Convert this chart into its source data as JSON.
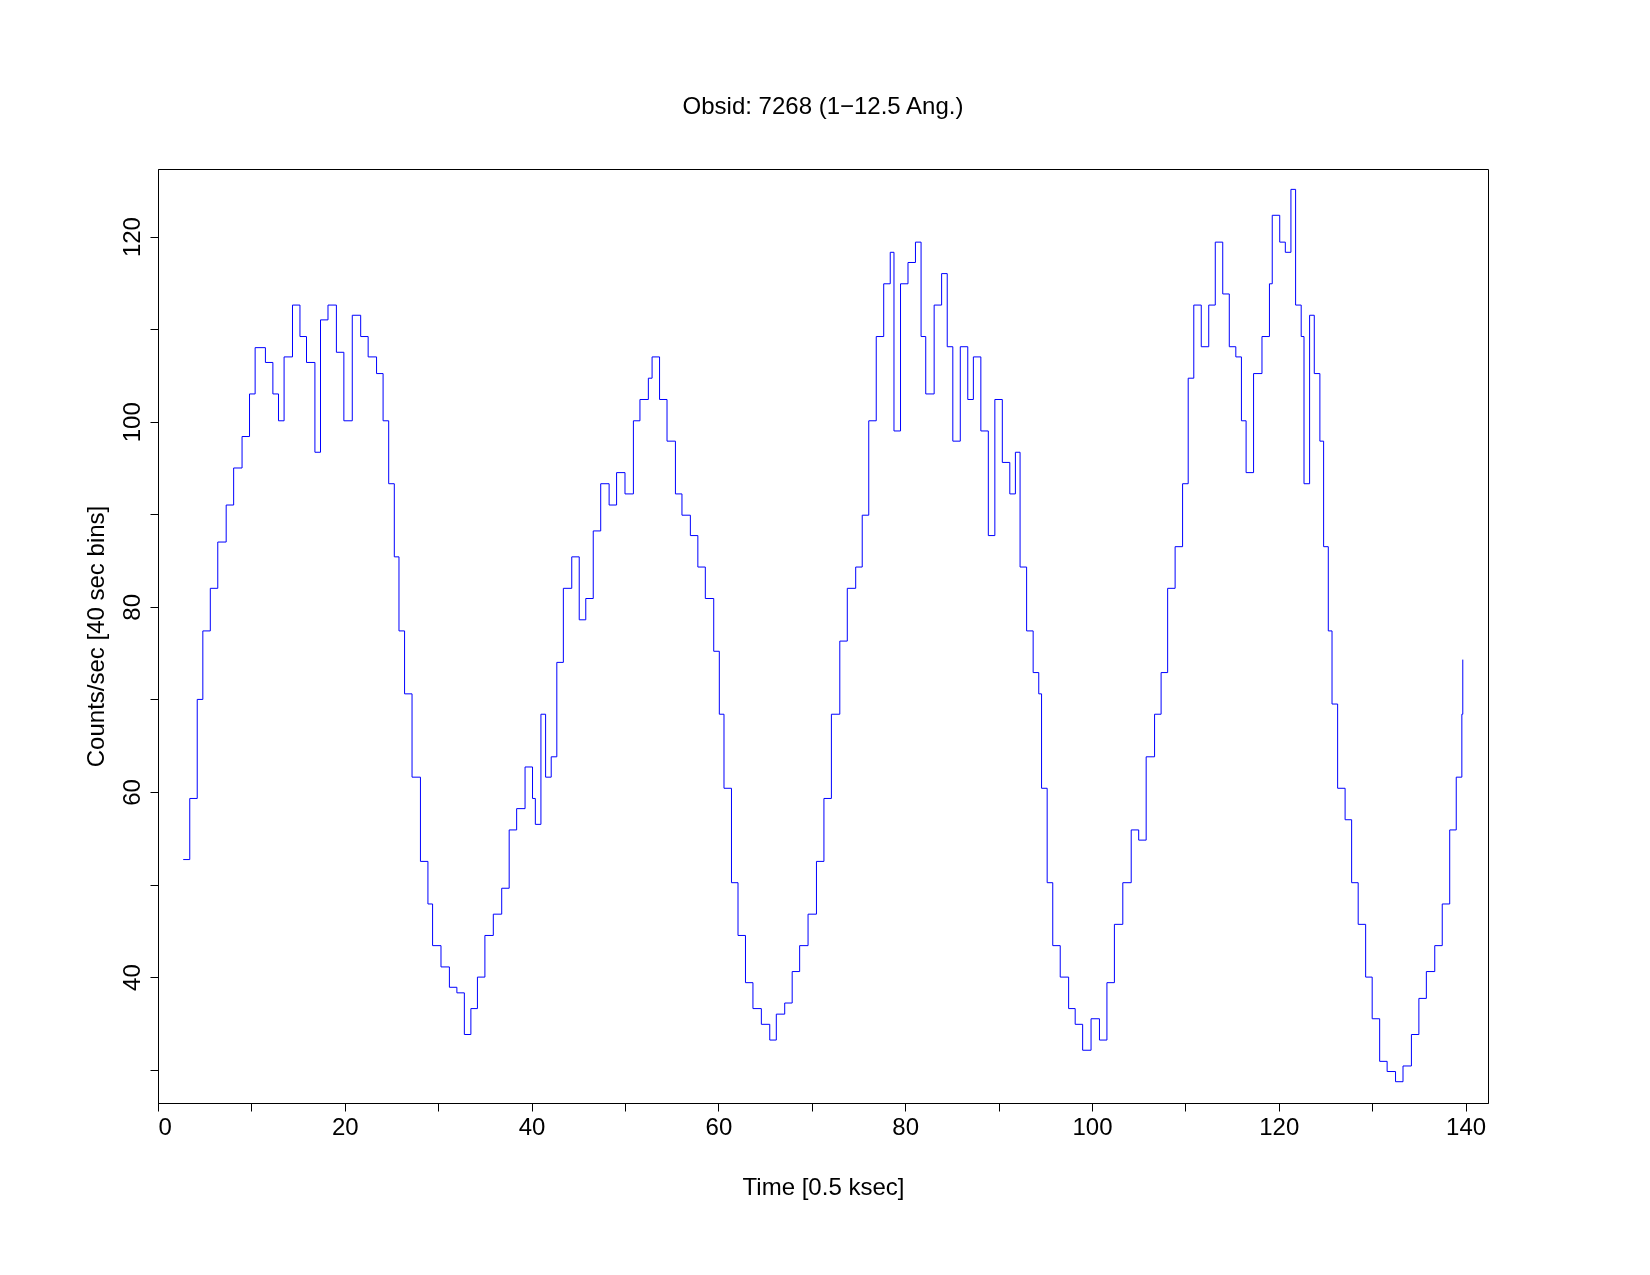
{
  "chart_data": {
    "type": "step",
    "title": "Obsid: 7268 (1−12.5 Ang.)",
    "xlabel": "Time [0.5 ksec]",
    "ylabel": "Counts/sec [40 sec bins]",
    "xlim": [
      0,
      142.4
    ],
    "ylim": [
      26.4,
      127.3
    ],
    "xticks": [
      0,
      {
        "value": 10,
        "label": null
      },
      20,
      {
        "value": 30,
        "label": null
      },
      40,
      {
        "value": 50,
        "label": null
      },
      60,
      {
        "value": 70,
        "label": null
      },
      80,
      {
        "value": 90,
        "label": null
      },
      100,
      {
        "value": 110,
        "label": null
      },
      120,
      {
        "value": 130,
        "label": null
      },
      140
    ],
    "yticks": [
      {
        "value": 30,
        "label": null
      },
      40,
      {
        "value": 50,
        "label": null
      },
      60,
      {
        "value": 70,
        "label": null
      },
      80,
      {
        "value": 90,
        "label": null
      },
      100,
      {
        "value": 110,
        "label": null
      },
      120
    ],
    "grid": false,
    "series": [
      {
        "color": "#0000ff",
        "x": [
          2.7,
          3.4,
          4.2,
          4.8,
          5.6,
          6.4,
          7.3,
          8.1,
          9.0,
          9.8,
          10.4,
          11.5,
          12.3,
          12.9,
          13.5,
          14.4,
          15.2,
          15.9,
          16.8,
          17.4,
          18.2,
          19.1,
          19.9,
          20.8,
          21.7,
          22.5,
          23.4,
          24.1,
          24.7,
          25.3,
          25.8,
          26.4,
          27.2,
          28.1,
          28.9,
          29.4,
          30.3,
          31.2,
          32.0,
          32.8,
          33.5,
          34.2,
          35.0,
          35.9,
          36.8,
          37.6,
          38.4,
          39.3,
          40.1,
          40.4,
          41.0,
          41.5,
          42.1,
          42.7,
          43.4,
          44.3,
          45.1,
          45.8,
          46.6,
          47.4,
          48.3,
          49.1,
          50.0,
          50.9,
          51.6,
          52.5,
          52.9,
          53.7,
          54.5,
          55.4,
          56.1,
          57.0,
          57.8,
          58.6,
          59.5,
          60.1,
          60.6,
          61.4,
          62.1,
          62.9,
          63.7,
          64.6,
          65.5,
          66.2,
          67.1,
          67.9,
          68.7,
          69.6,
          70.5,
          71.3,
          72.1,
          73.0,
          73.8,
          74.7,
          75.4,
          76.1,
          76.9,
          77.7,
          78.4,
          78.8,
          79.5,
          80.3,
          81.1,
          81.7,
          82.2,
          83.1,
          83.9,
          84.5,
          85.1,
          85.9,
          86.7,
          87.3,
          88.1,
          88.9,
          89.6,
          90.4,
          91.2,
          91.8,
          92.3,
          93.0,
          93.7,
          94.3,
          94.6,
          95.2,
          95.8,
          96.6,
          97.5,
          98.2,
          99.0,
          99.9,
          100.8,
          101.6,
          102.4,
          103.3,
          104.2,
          105.0,
          105.8,
          106.7,
          107.4,
          108.1,
          108.9,
          109.7,
          110.3,
          110.9,
          111.7,
          112.5,
          113.2,
          114.0,
          114.7,
          115.4,
          116.0,
          116.5,
          117.3,
          118.2,
          119.0,
          119.3,
          120.1,
          120.7,
          121.3,
          121.8,
          122.4,
          122.7,
          123.3,
          123.8,
          124.4,
          124.8,
          125.3,
          125.7,
          126.3,
          127.1,
          127.8,
          128.5,
          129.3,
          130.0,
          130.8,
          131.6,
          132.5,
          133.3,
          134.2,
          135.0,
          135.8,
          136.7,
          137.5,
          138.3,
          139.0,
          139.6,
          139.7
        ],
        "values": [
          52.7,
          59.3,
          70,
          77.4,
          82,
          87,
          91,
          95,
          98.4,
          103,
          108,
          106.4,
          103,
          100.1,
          107,
          112.6,
          109.2,
          106.4,
          96.7,
          111,
          112.6,
          107.5,
          100.1,
          111.5,
          109.2,
          107,
          105.2,
          100.1,
          93.3,
          85.4,
          77.4,
          70.6,
          61.6,
          52.5,
          47.9,
          43.4,
          41.1,
          38.9,
          38.3,
          33.8,
          36.6,
          40,
          44.5,
          46.8,
          49.6,
          55.9,
          58.2,
          62.7,
          59.3,
          56.5,
          68.4,
          61.6,
          63.8,
          74,
          82,
          85.4,
          78.6,
          80.9,
          88.2,
          93.3,
          91,
          94.5,
          92.2,
          100.1,
          102.4,
          104.7,
          107,
          102.4,
          97.9,
          92.2,
          89.9,
          87.7,
          84.3,
          80.9,
          75.2,
          68.4,
          60.4,
          50.2,
          44.5,
          39.4,
          36.6,
          34.9,
          33.2,
          36,
          37.2,
          40.6,
          43.4,
          46.8,
          52.5,
          59.3,
          68.4,
          76.3,
          82,
          84.3,
          89.9,
          100.1,
          109.2,
          114.9,
          118.3,
          99,
          114.9,
          117.2,
          119.4,
          109.2,
          103,
          112.6,
          116,
          108.1,
          97.9,
          108.1,
          102.4,
          107,
          99,
          87.7,
          102.4,
          95.6,
          92.2,
          96.7,
          84.3,
          77.4,
          72.9,
          70.6,
          60.4,
          50.2,
          43.4,
          40,
          36.6,
          34.9,
          32.1,
          35.5,
          33.2,
          39.4,
          45.7,
          50.2,
          55.9,
          54.8,
          63.8,
          68.4,
          72.9,
          82,
          86.5,
          93.3,
          104.7,
          112.6,
          108.1,
          112.6,
          119.4,
          113.8,
          108.1,
          107,
          100.1,
          94.5,
          105.2,
          109.2,
          114.9,
          122.3,
          119.4,
          118.3,
          125.1,
          112.6,
          109.2,
          93.3,
          111.5,
          105.2,
          97.9,
          86.5,
          77.4,
          69.5,
          60.4,
          57,
          50.2,
          45.7,
          40,
          35.5,
          30.9,
          29.8,
          28.7,
          30.4,
          33.8,
          37.7,
          40.6,
          43.4,
          47.9,
          55.9,
          61.6,
          68.4,
          74.3
        ]
      }
    ]
  }
}
